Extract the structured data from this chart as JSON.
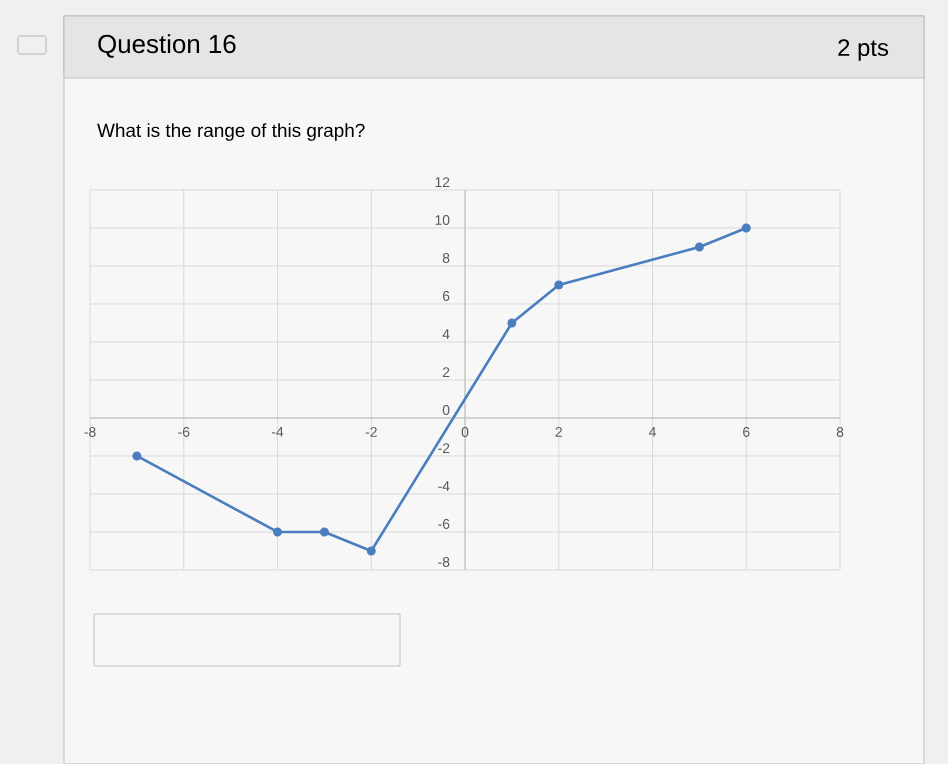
{
  "chart_data": {
    "type": "line",
    "title": "Question 16",
    "subtitle": "What is the range of this graph?",
    "annotations": [
      "2 pts"
    ],
    "x": [
      -7,
      -4,
      -3,
      -2,
      1,
      2,
      5,
      6
    ],
    "values": [
      -2,
      -6,
      -6,
      -7,
      5,
      7,
      9,
      10
    ],
    "color": "#4a7ebf",
    "marker": "circle",
    "grid": true,
    "xlim": [
      -8,
      8
    ],
    "ylim": [
      -8,
      12
    ],
    "xticks": [
      -8,
      -6,
      -4,
      -2,
      0,
      2,
      4,
      6,
      8
    ],
    "yticks": [
      -8,
      -6,
      -4,
      -2,
      0,
      2,
      4,
      6,
      8,
      10,
      12
    ]
  }
}
